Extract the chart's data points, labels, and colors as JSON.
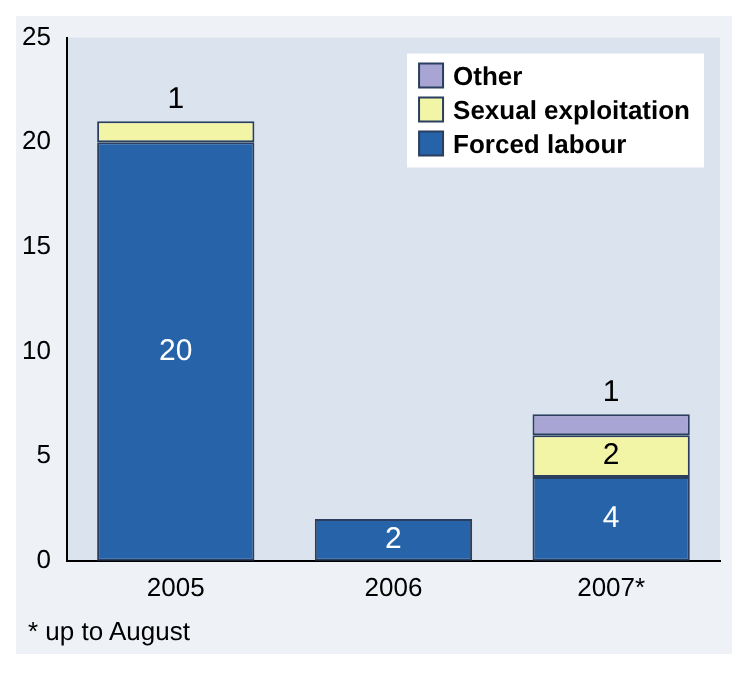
{
  "chart_data": {
    "type": "bar",
    "stacked": true,
    "categories": [
      "2005",
      "2006",
      "2007*"
    ],
    "series": [
      {
        "name": "Forced labour",
        "color": "#2763a8",
        "values": [
          20,
          2,
          4
        ],
        "value_labels": [
          "20",
          "2",
          "4"
        ]
      },
      {
        "name": "Sexual exploitation",
        "color": "#f3f5a6",
        "values": [
          1,
          0,
          2
        ],
        "value_labels": [
          "1",
          null,
          "2"
        ]
      },
      {
        "name": "Other",
        "color": "#a8a4d4",
        "values": [
          0,
          0,
          1
        ],
        "value_labels": [
          null,
          null,
          "1"
        ]
      }
    ],
    "ylim": [
      0,
      25
    ],
    "yticks": [
      0,
      5,
      10,
      15,
      20,
      25
    ],
    "grid": false,
    "legend": "top right",
    "annotations": [
      "* up to August"
    ]
  }
}
